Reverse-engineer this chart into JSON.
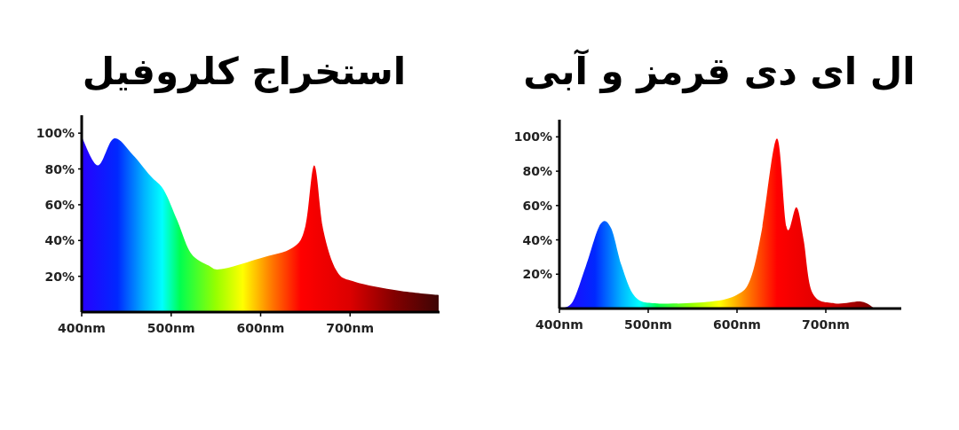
{
  "chart_data": [
    {
      "type": "area",
      "title": "استخراج کلروفیل",
      "series": [
        {
          "x": [
            400,
            418,
            436,
            457,
            477,
            492,
            507,
            522,
            542,
            556,
            599,
            636,
            650,
            660,
            670,
            685,
            705,
            754,
            799
          ],
          "values": [
            98,
            82,
            97,
            88,
            76,
            68,
            51,
            33,
            26,
            24,
            30,
            36,
            48,
            82,
            46,
            23,
            17,
            12,
            9.5
          ]
        }
      ],
      "xlim": [
        400,
        800
      ],
      "ylim": [
        0,
        110
      ],
      "xticks": [
        {
          "value": 400,
          "label": "400nm"
        },
        {
          "value": 500,
          "label": "500nm"
        },
        {
          "value": 600,
          "label": "600nm"
        },
        {
          "value": 700,
          "label": "700nm"
        }
      ],
      "yticks": [
        {
          "value": 20,
          "label": "20%"
        },
        {
          "value": 40,
          "label": "40%"
        },
        {
          "value": 60,
          "label": "60%"
        },
        {
          "value": 80,
          "label": "80%"
        },
        {
          "value": 100,
          "label": "100%"
        }
      ],
      "grid": false
    },
    {
      "type": "area",
      "title": "ال ای دی قرمز و آبی",
      "series": [
        {
          "x": [
            402,
            415,
            430,
            446,
            458,
            470,
            485,
            510,
            570,
            600,
            615,
            628,
            645,
            656,
            667,
            675,
            685,
            710,
            740,
            755
          ],
          "values": [
            0,
            4,
            25,
            49,
            47,
            25,
            7,
            3,
            4,
            8,
            17,
            46,
            99,
            47,
            59,
            40,
            9,
            3,
            4,
            0
          ]
        }
      ],
      "xlim": [
        400,
        785
      ],
      "ylim": [
        0,
        110
      ],
      "xticks": [
        {
          "value": 400,
          "label": "400nm"
        },
        {
          "value": 500,
          "label": "500nm"
        },
        {
          "value": 600,
          "label": "600nm"
        },
        {
          "value": 700,
          "label": "700nm"
        }
      ],
      "yticks": [
        {
          "value": 20,
          "label": "20%"
        },
        {
          "value": 40,
          "label": "40%"
        },
        {
          "value": 60,
          "label": "60%"
        },
        {
          "value": 80,
          "label": "80%"
        },
        {
          "value": 100,
          "label": "100%"
        }
      ],
      "grid": false
    }
  ]
}
